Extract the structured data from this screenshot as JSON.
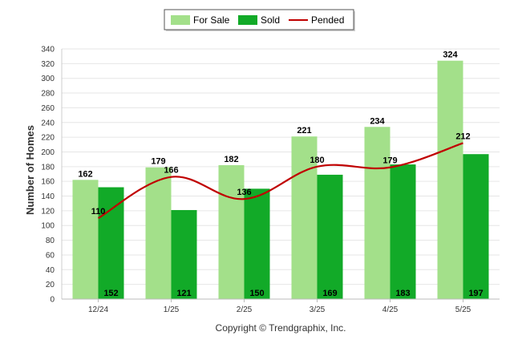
{
  "chart_data": {
    "type": "bar",
    "categories": [
      "12/24",
      "1/25",
      "2/25",
      "3/25",
      "4/25",
      "5/25"
    ],
    "series": [
      {
        "name": "For Sale",
        "type": "bar",
        "color": "#a3e08a",
        "values": [
          162,
          179,
          182,
          221,
          234,
          324
        ]
      },
      {
        "name": "Sold",
        "type": "bar",
        "color": "#12aa28",
        "values": [
          152,
          121,
          150,
          169,
          183,
          197
        ]
      },
      {
        "name": "Pended",
        "type": "line",
        "color": "#c00000",
        "values": [
          110,
          166,
          136,
          180,
          179,
          212
        ]
      }
    ],
    "ylabel": "Number of Homes",
    "xlabel": "",
    "ylim": [
      0,
      340
    ],
    "yticks": [
      0,
      20,
      40,
      60,
      80,
      100,
      120,
      140,
      160,
      180,
      200,
      220,
      240,
      260,
      280,
      300,
      320,
      340
    ],
    "grid": true,
    "legend_position": "top-center",
    "credit": "Copyright © Trendgraphix, Inc."
  }
}
